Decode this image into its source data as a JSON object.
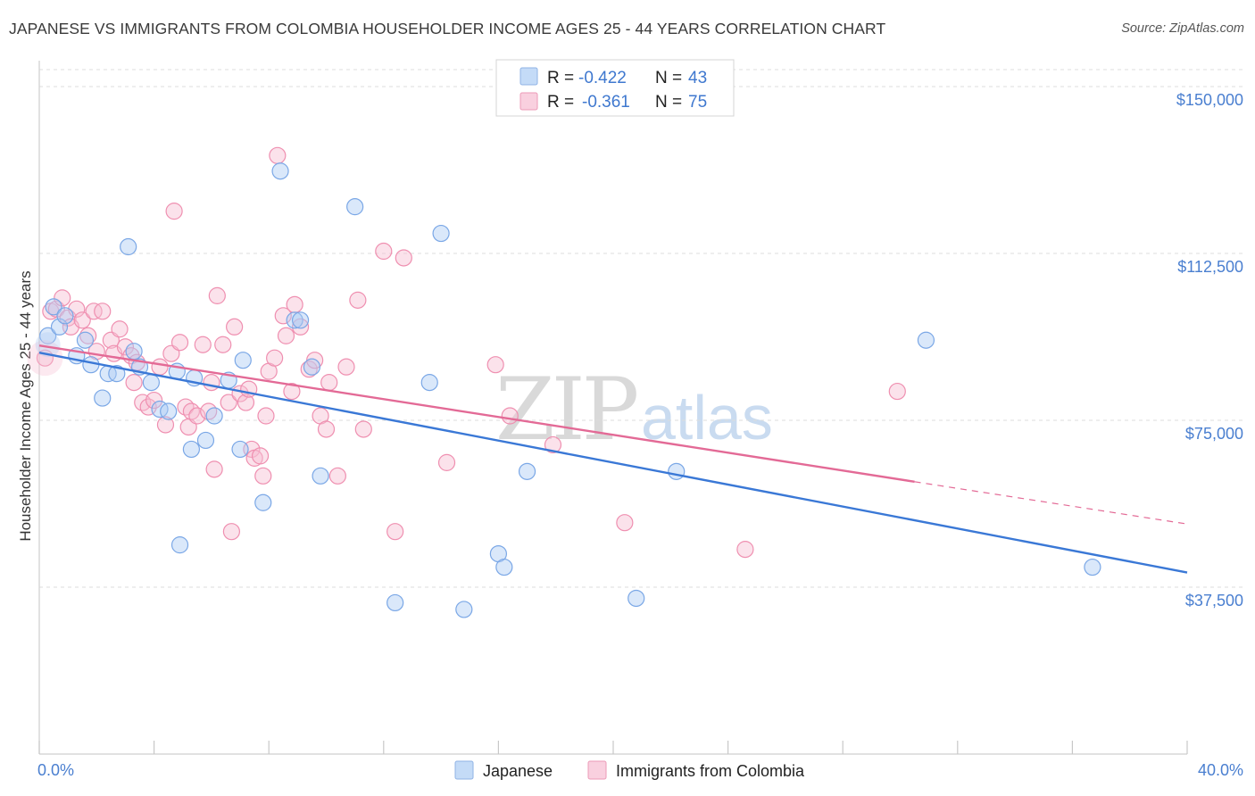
{
  "title": "JAPANESE VS IMMIGRANTS FROM COLOMBIA HOUSEHOLDER INCOME AGES 25 - 44 YEARS CORRELATION CHART",
  "source": "Source: ZipAtlas.com",
  "watermark": {
    "part1": "ZIP",
    "part2": "atlas"
  },
  "stats_box": {
    "rows": [
      {
        "r_label": "R =",
        "r_value": "-0.422",
        "n_label": "N =",
        "n_value": "43",
        "color": "#aecbf3"
      },
      {
        "r_label": "R =",
        "r_value": "-0.361",
        "n_label": "N =",
        "n_value": "75",
        "color": "#f7bfd3"
      }
    ]
  },
  "legend": {
    "items": [
      {
        "label": "Japanese",
        "color": "#aecbf3"
      },
      {
        "label": "Immigrants from Colombia",
        "color": "#f7bfd3"
      }
    ]
  },
  "chart_data": {
    "type": "scatter",
    "title": "JAPANESE VS IMMIGRANTS FROM COLOMBIA HOUSEHOLDER INCOME AGES 25 - 44 YEARS CORRELATION CHART",
    "xlabel": "",
    "ylabel": "Householder Income Ages 25 - 44 years",
    "xlim": [
      0,
      40
    ],
    "ylim": [
      0,
      153750
    ],
    "x_tick_labels": [
      "0.0%",
      "40.0%"
    ],
    "y_ticks": [
      37500,
      75000,
      112500,
      150000
    ],
    "y_tick_labels": [
      "$37,500",
      "$75,000",
      "$112,500",
      "$150,000"
    ],
    "grid": true,
    "legend_position": "bottom",
    "series": [
      {
        "name": "Japanese",
        "color": "#7aa7e6",
        "trend": {
          "x": [
            0,
            40
          ],
          "y": [
            90200,
            40800
          ]
        },
        "points": [
          [
            0.3,
            94000
          ],
          [
            0.5,
            100500
          ],
          [
            0.7,
            96000
          ],
          [
            0.9,
            98500
          ],
          [
            1.3,
            89500
          ],
          [
            1.6,
            93000
          ],
          [
            1.8,
            87500
          ],
          [
            2.2,
            80000
          ],
          [
            2.4,
            85500
          ],
          [
            2.7,
            85500
          ],
          [
            3.1,
            114000
          ],
          [
            3.3,
            90500
          ],
          [
            3.5,
            87000
          ],
          [
            3.9,
            83500
          ],
          [
            4.2,
            77500
          ],
          [
            4.5,
            77000
          ],
          [
            4.8,
            86000
          ],
          [
            4.9,
            47000
          ],
          [
            5.3,
            68500
          ],
          [
            5.4,
            84500
          ],
          [
            5.8,
            70500
          ],
          [
            6.1,
            76000
          ],
          [
            6.6,
            84000
          ],
          [
            7.0,
            68500
          ],
          [
            7.1,
            88500
          ],
          [
            7.8,
            56500
          ],
          [
            8.4,
            131000
          ],
          [
            8.9,
            97500
          ],
          [
            9.1,
            97500
          ],
          [
            9.5,
            87000
          ],
          [
            9.8,
            62500
          ],
          [
            11.0,
            123000
          ],
          [
            12.4,
            34000
          ],
          [
            13.6,
            83500
          ],
          [
            14.0,
            117000
          ],
          [
            14.8,
            32500
          ],
          [
            16.0,
            45000
          ],
          [
            16.2,
            42000
          ],
          [
            17.0,
            63500
          ],
          [
            20.8,
            35000
          ],
          [
            22.2,
            63500
          ],
          [
            30.9,
            93000
          ],
          [
            36.7,
            42000
          ]
        ]
      },
      {
        "name": "Immigrants from Colombia",
        "color": "#ef8fb0",
        "trend": {
          "x": [
            0,
            30.5
          ],
          "y": [
            91800,
            61200
          ]
        },
        "trend_dashed": {
          "x": [
            30.5,
            40
          ],
          "y": [
            61200,
            51700
          ]
        },
        "points": [
          [
            0.2,
            89000
          ],
          [
            0.4,
            99500
          ],
          [
            0.6,
            100000
          ],
          [
            0.8,
            102500
          ],
          [
            1.0,
            98000
          ],
          [
            1.1,
            96000
          ],
          [
            1.3,
            100000
          ],
          [
            1.5,
            97500
          ],
          [
            1.7,
            94000
          ],
          [
            1.9,
            99500
          ],
          [
            2.0,
            90500
          ],
          [
            2.2,
            99500
          ],
          [
            2.5,
            93000
          ],
          [
            2.6,
            90000
          ],
          [
            2.8,
            95500
          ],
          [
            3.0,
            91500
          ],
          [
            3.2,
            89500
          ],
          [
            3.3,
            83500
          ],
          [
            3.4,
            88000
          ],
          [
            3.6,
            79000
          ],
          [
            3.8,
            78000
          ],
          [
            4.0,
            79500
          ],
          [
            4.2,
            87000
          ],
          [
            4.4,
            74000
          ],
          [
            4.6,
            90000
          ],
          [
            4.7,
            122000
          ],
          [
            4.9,
            92500
          ],
          [
            5.1,
            78000
          ],
          [
            5.2,
            73500
          ],
          [
            5.3,
            77000
          ],
          [
            5.5,
            76000
          ],
          [
            5.7,
            92000
          ],
          [
            5.9,
            77000
          ],
          [
            6.0,
            83500
          ],
          [
            6.1,
            64000
          ],
          [
            6.2,
            103000
          ],
          [
            6.4,
            92000
          ],
          [
            6.6,
            79000
          ],
          [
            6.7,
            50000
          ],
          [
            6.8,
            96000
          ],
          [
            7.0,
            81000
          ],
          [
            7.2,
            79000
          ],
          [
            7.4,
            68500
          ],
          [
            7.5,
            66500
          ],
          [
            7.7,
            67000
          ],
          [
            7.8,
            62500
          ],
          [
            7.9,
            76000
          ],
          [
            8.0,
            86000
          ],
          [
            8.2,
            89000
          ],
          [
            8.3,
            134500
          ],
          [
            8.5,
            98500
          ],
          [
            8.6,
            94000
          ],
          [
            8.8,
            81500
          ],
          [
            8.9,
            101000
          ],
          [
            9.1,
            96000
          ],
          [
            9.4,
            86500
          ],
          [
            9.6,
            88500
          ],
          [
            9.8,
            76000
          ],
          [
            10.0,
            73000
          ],
          [
            10.1,
            83500
          ],
          [
            10.4,
            62500
          ],
          [
            10.7,
            87000
          ],
          [
            11.1,
            102000
          ],
          [
            11.3,
            73000
          ],
          [
            12.0,
            113000
          ],
          [
            12.4,
            50000
          ],
          [
            12.7,
            111500
          ],
          [
            14.2,
            65500
          ],
          [
            15.9,
            87500
          ],
          [
            16.4,
            76000
          ],
          [
            17.9,
            69500
          ],
          [
            20.4,
            52000
          ],
          [
            24.6,
            46000
          ],
          [
            29.9,
            81500
          ],
          [
            7.3,
            82000
          ]
        ]
      }
    ]
  }
}
